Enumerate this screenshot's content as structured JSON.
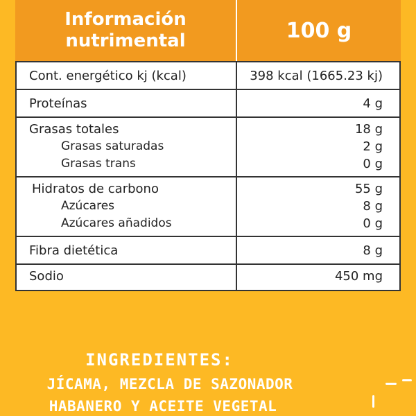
{
  "header": {
    "title_line1": "Información",
    "title_line2": "nutrimental",
    "serving": "100 g"
  },
  "rows": [
    {
      "label": "Cont. energético kj (kcal)",
      "value": "398 kcal (1665.23 kj)"
    },
    {
      "label": "Proteínas",
      "value": "4 g"
    },
    {
      "label": "Grasas totales",
      "value": "18 g",
      "sub": [
        {
          "label": "Grasas saturadas",
          "value": "2 g"
        },
        {
          "label": "Grasas trans",
          "value": "0 g"
        }
      ]
    },
    {
      "label": "Hidratos de carbono",
      "value": "55 g",
      "sub": [
        {
          "label": "Azúcares",
          "value": "8 g"
        },
        {
          "label": "Azúcares añadidos",
          "value": "0 g"
        }
      ]
    },
    {
      "label": "Fibra dietética",
      "value": "8 g"
    },
    {
      "label": "Sodio",
      "value": "450 mg"
    }
  ],
  "ingredients": {
    "title": "INGREDIENTES:",
    "line1": "JÍCAMA, MEZCLA DE SAZONADOR",
    "line2": "HABANERO Y ACEITE VEGETAL"
  },
  "colors": {
    "background": "#FDB924",
    "header": "#F29A1F",
    "text": "#222222"
  }
}
